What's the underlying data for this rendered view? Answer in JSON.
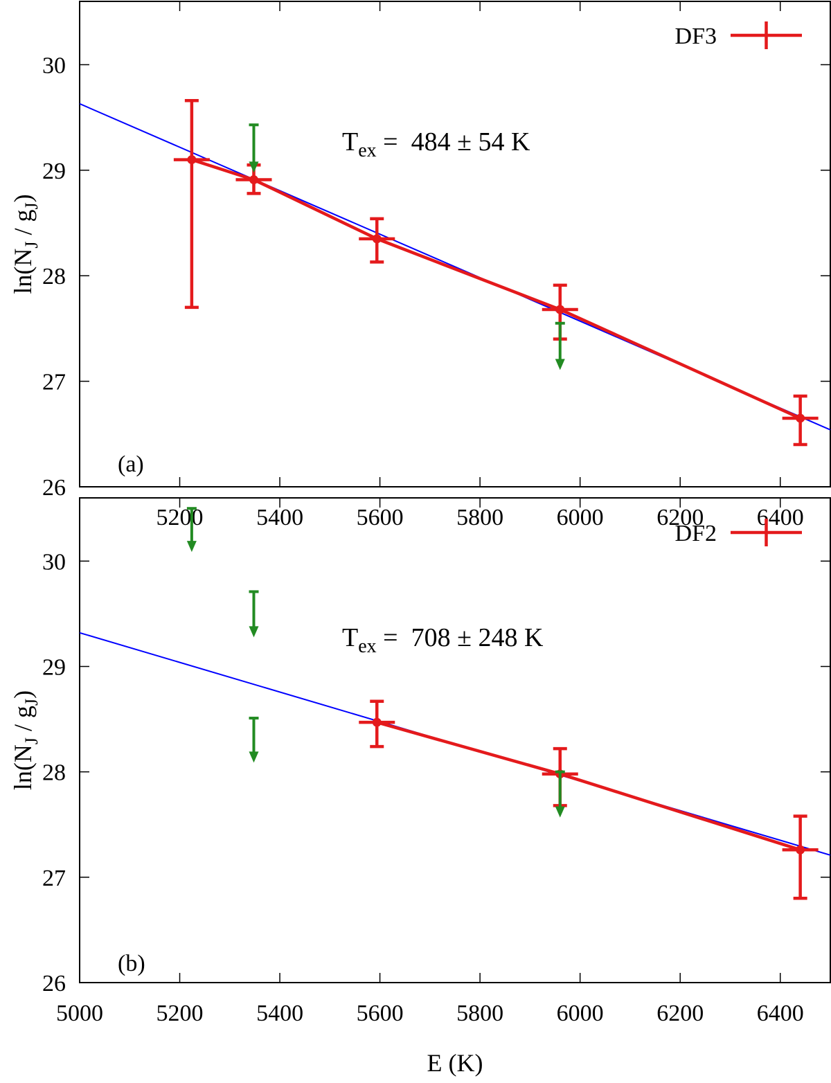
{
  "chart_data": [
    {
      "type": "scatter",
      "panel_label": "(a)",
      "legend": {
        "label": "DF3",
        "placement": "top-right"
      },
      "annotation": {
        "symbol": "T",
        "subscript": "ex",
        "text": " =  484 ± 54 K"
      },
      "ylabel": {
        "prefix": "ln(N",
        "sub1": "J",
        "mid": " / g",
        "sub2": "J",
        "suffix": ")"
      },
      "xlabel": "",
      "xlim": [
        5000,
        6500
      ],
      "ylim": [
        26,
        30.6
      ],
      "x_ticks": [
        5200,
        5400,
        5600,
        5800,
        6000,
        6200,
        6400
      ],
      "y_ticks": [
        26,
        27,
        28,
        29,
        30
      ],
      "y_tick_labels": [
        "26",
        "27",
        "28",
        "29",
        "30"
      ],
      "fit_line": {
        "color": "#0000ff",
        "x": [
          5000,
          6500
        ],
        "y": [
          29.63,
          26.54
        ]
      },
      "series": [
        {
          "name": "DF3",
          "color": "#e41a1c",
          "x": [
            5224,
            5348,
            5594,
            5960,
            6440
          ],
          "y": [
            29.1,
            28.91,
            28.35,
            27.68,
            26.65
          ],
          "y_err_low": [
            27.7,
            28.78,
            28.13,
            27.4,
            26.4
          ],
          "y_err_high": [
            29.66,
            29.05,
            28.54,
            27.91,
            26.86
          ],
          "x_err": 36,
          "connected": true
        }
      ],
      "upper_limits": {
        "color": "#228b22",
        "points": [
          {
            "x": 5348,
            "from": 29.43,
            "to": 28.99
          },
          {
            "x": 5960,
            "from": 27.55,
            "to": 27.12
          }
        ]
      }
    },
    {
      "type": "scatter",
      "panel_label": "(b)",
      "legend": {
        "label": "DF2",
        "placement": "top-right"
      },
      "annotation": {
        "symbol": "T",
        "subscript": "ex",
        "text": " =  708 ± 248 K"
      },
      "ylabel": {
        "prefix": "ln(N",
        "sub1": "J",
        "mid": " / g",
        "sub2": "J",
        "suffix": ")"
      },
      "xlabel": "E (K)",
      "xlim": [
        5000,
        6500
      ],
      "ylim": [
        26,
        30.6
      ],
      "x_ticks": [
        5000,
        5200,
        5400,
        5600,
        5800,
        6000,
        6200,
        6400
      ],
      "y_ticks": [
        26,
        27,
        28,
        29,
        30
      ],
      "y_tick_labels": [
        "26",
        "27",
        "28",
        "29",
        "30"
      ],
      "fit_line": {
        "color": "#0000ff",
        "x": [
          5000,
          6500
        ],
        "y": [
          29.32,
          27.21
        ]
      },
      "series": [
        {
          "name": "DF2",
          "color": "#e41a1c",
          "x": [
            5594,
            5960,
            6440
          ],
          "y": [
            28.47,
            27.98,
            27.26
          ],
          "y_err_low": [
            28.24,
            27.68,
            26.8
          ],
          "y_err_high": [
            28.67,
            28.22,
            27.58
          ],
          "x_err": 36,
          "connected": true
        }
      ],
      "upper_limits": {
        "color": "#228b22",
        "points": [
          {
            "x": 5224,
            "from": 30.5,
            "to": 30.1
          },
          {
            "x": 5348,
            "from": 29.71,
            "to": 29.29
          },
          {
            "x": 5348,
            "from": 28.51,
            "to": 28.1
          },
          {
            "x": 5960,
            "from": 28.0,
            "to": 27.58
          }
        ]
      }
    }
  ]
}
